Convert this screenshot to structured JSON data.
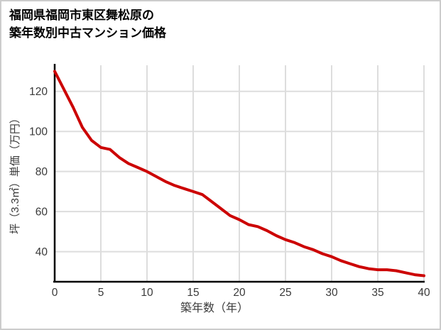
{
  "page": {
    "title_line1": "福岡県福岡市東区舞松原の",
    "title_line2": "築年数別中古マンション価格"
  },
  "chart_data": {
    "type": "line",
    "title": "福岡県福岡市東区舞松原の築年数別中古マンション価格",
    "xlabel": "築年数（年）",
    "ylabel": "坪（3.3㎡）単価（万円）",
    "x": [
      0,
      1,
      2,
      3,
      4,
      5,
      6,
      7,
      8,
      9,
      10,
      11,
      12,
      13,
      14,
      15,
      16,
      17,
      18,
      19,
      20,
      21,
      22,
      23,
      24,
      25,
      26,
      27,
      28,
      29,
      30,
      31,
      32,
      33,
      34,
      35,
      36,
      37,
      38,
      39,
      40
    ],
    "values": [
      130,
      121,
      112,
      102,
      95.5,
      92,
      91,
      87,
      84,
      82,
      80,
      77.5,
      75,
      73,
      71.5,
      70,
      68.5,
      65,
      61.5,
      58,
      56,
      53.5,
      52.5,
      50.5,
      48,
      46,
      44.5,
      42.5,
      41,
      39,
      37.5,
      35.5,
      34,
      32.5,
      31.5,
      31,
      31,
      30.5,
      29.5,
      28.5,
      28
    ],
    "xlim": [
      0,
      40
    ],
    "ylim": [
      25,
      133
    ],
    "xticks": [
      0,
      5,
      10,
      15,
      20,
      25,
      30,
      35,
      40
    ],
    "yticks": [
      40,
      60,
      80,
      100,
      120
    ],
    "grid": true,
    "legend": "none",
    "colors": {
      "line": "#cc0000",
      "grid": "#dddddd",
      "axis": "#000000",
      "tick_label": "#3a3a3a"
    },
    "line_width": 4
  }
}
